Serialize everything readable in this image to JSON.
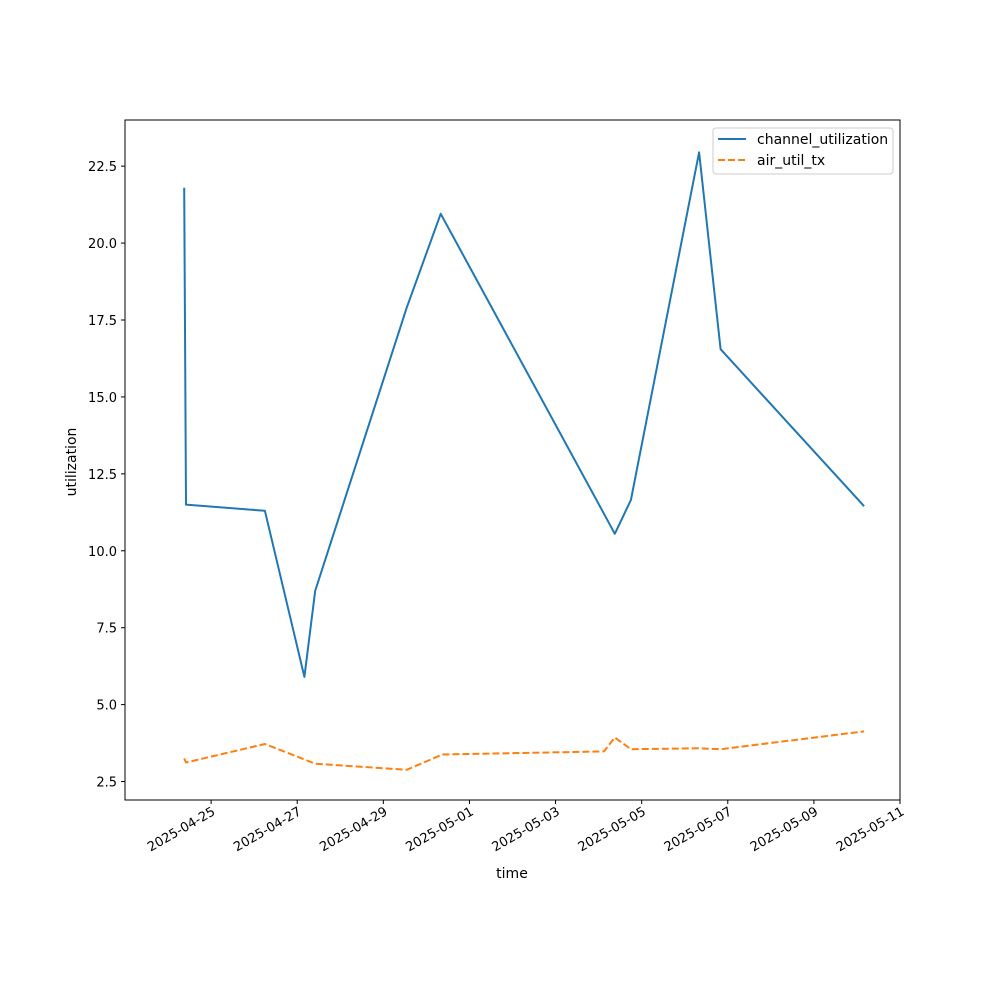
{
  "chart_data": {
    "type": "line",
    "xlabel": "time",
    "ylabel": "utilization",
    "x_type": "date",
    "xlim": [
      "2025-04-23",
      "2025-05-11"
    ],
    "ylim": [
      1.9,
      24.0
    ],
    "y_ticks": [
      2.5,
      5.0,
      7.5,
      10.0,
      12.5,
      15.0,
      17.5,
      20.0,
      22.5
    ],
    "y_tick_labels": [
      "2.5",
      "5.0",
      "7.5",
      "10.0",
      "12.5",
      "15.0",
      "17.5",
      "20.0",
      "22.5"
    ],
    "x_ticks": [
      "2025-04-25",
      "2025-04-27",
      "2025-04-29",
      "2025-05-01",
      "2025-05-03",
      "2025-05-05",
      "2025-05-07",
      "2025-05-09",
      "2025-05-11"
    ],
    "x_tick_labels": [
      "2025-04-25",
      "2025-04-27",
      "2025-04-29",
      "2025-05-01",
      "2025-05-03",
      "2025-05-05",
      "2025-05-07",
      "2025-05-09",
      "2025-05-11"
    ],
    "legend_position": "top-right",
    "grid": false,
    "series": [
      {
        "name": "channel_utilization",
        "color": "#1f77b4",
        "line_style": "solid",
        "points": [
          [
            "2025-04-24T09:00",
            21.8
          ],
          [
            "2025-04-24T10:00",
            11.5
          ],
          [
            "2025-04-26T06:00",
            11.3
          ],
          [
            "2025-04-27T04:00",
            5.9
          ],
          [
            "2025-04-27T10:00",
            8.7
          ],
          [
            "2025-04-29T13:00",
            17.9
          ],
          [
            "2025-04-30T08:00",
            20.95
          ],
          [
            "2025-05-04T03:00",
            11.2
          ],
          [
            "2025-05-04T09:00",
            10.55
          ],
          [
            "2025-05-04T18:00",
            11.65
          ],
          [
            "2025-05-06T08:00",
            22.95
          ],
          [
            "2025-05-06T20:00",
            16.55
          ],
          [
            "2025-05-10T04:00",
            11.45
          ]
        ]
      },
      {
        "name": "air_util_tx",
        "color": "#ff7f0e",
        "line_style": "dashed",
        "points": [
          [
            "2025-04-24T09:00",
            3.25
          ],
          [
            "2025-04-24T10:00",
            3.12
          ],
          [
            "2025-04-26T06:00",
            3.72
          ],
          [
            "2025-04-27T10:00",
            3.08
          ],
          [
            "2025-04-29T13:00",
            2.88
          ],
          [
            "2025-04-30T09:00",
            3.38
          ],
          [
            "2025-05-04T03:00",
            3.48
          ],
          [
            "2025-05-04T09:00",
            3.93
          ],
          [
            "2025-05-04T18:00",
            3.55
          ],
          [
            "2025-05-06T08:00",
            3.58
          ],
          [
            "2025-05-06T20:00",
            3.55
          ],
          [
            "2025-05-10T04:00",
            4.13
          ]
        ]
      }
    ]
  }
}
